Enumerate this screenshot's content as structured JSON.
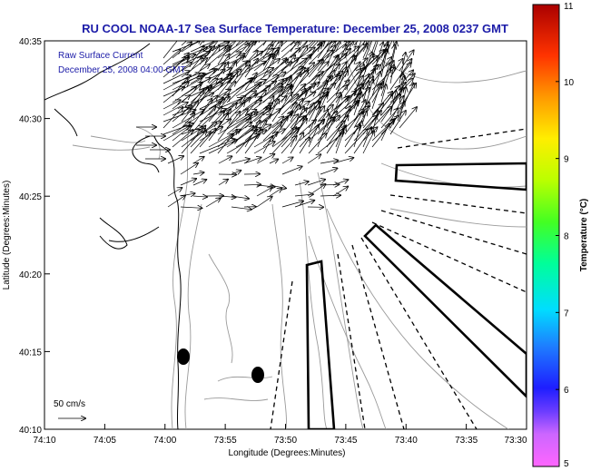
{
  "title": "RU COOL  NOAA-17  Sea Surface Temperature:  December 25, 2008 0237 GMT",
  "legend": {
    "line1": "Raw Surface Current",
    "line2": "December 25, 2008 04:00 GMT",
    "scale_label": "50 cm/s"
  },
  "axes": {
    "xlabel": "Longitude (Degrees:Minutes)",
    "ylabel": "Latitude (Degrees:Minutes)",
    "x_ticks": [
      "74:10",
      "74:05",
      "74:00",
      "73:55",
      "73:50",
      "73:45",
      "73:40",
      "73:35",
      "73:30"
    ],
    "y_ticks": [
      "40:35",
      "40:30",
      "40:25",
      "40:20",
      "40:15",
      "40:10"
    ]
  },
  "colorbar": {
    "label": "Temperature (°C)",
    "ticks": [
      "11",
      "10",
      "9",
      "8",
      "7",
      "6",
      "5"
    ],
    "min": 5,
    "max": 11
  },
  "colors": {
    "title": "#1c1ca8",
    "vector": "#000000",
    "coast": "#000000",
    "bathymetry": "#9a9a9a"
  },
  "map_extent": {
    "lon_west": "74:10",
    "lon_east": "73:30",
    "lat_south": "40:10",
    "lat_north": "40:35"
  }
}
